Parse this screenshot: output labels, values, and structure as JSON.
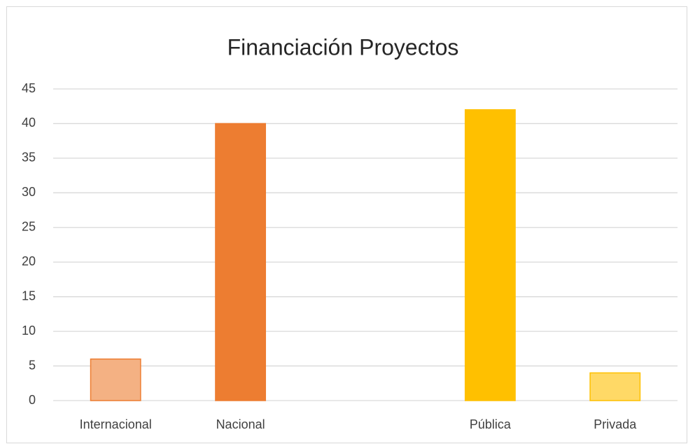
{
  "chart_data": {
    "type": "bar",
    "title": "Financiación Proyectos",
    "categories": [
      "Internacional",
      "Nacional",
      null,
      "Pública",
      "Privada"
    ],
    "values": [
      6,
      40,
      null,
      42,
      4
    ],
    "colors": [
      "#f4b183",
      "#ed7d31",
      null,
      "#ffc000",
      "#ffd966"
    ],
    "edgecolors": [
      "#ed7d31",
      "#ed7d31",
      null,
      "#ffc000",
      "#ffc000"
    ],
    "ylim": [
      0,
      45
    ],
    "yticks": [
      0,
      5,
      10,
      15,
      20,
      25,
      30,
      35,
      40,
      45
    ],
    "grid": true
  }
}
